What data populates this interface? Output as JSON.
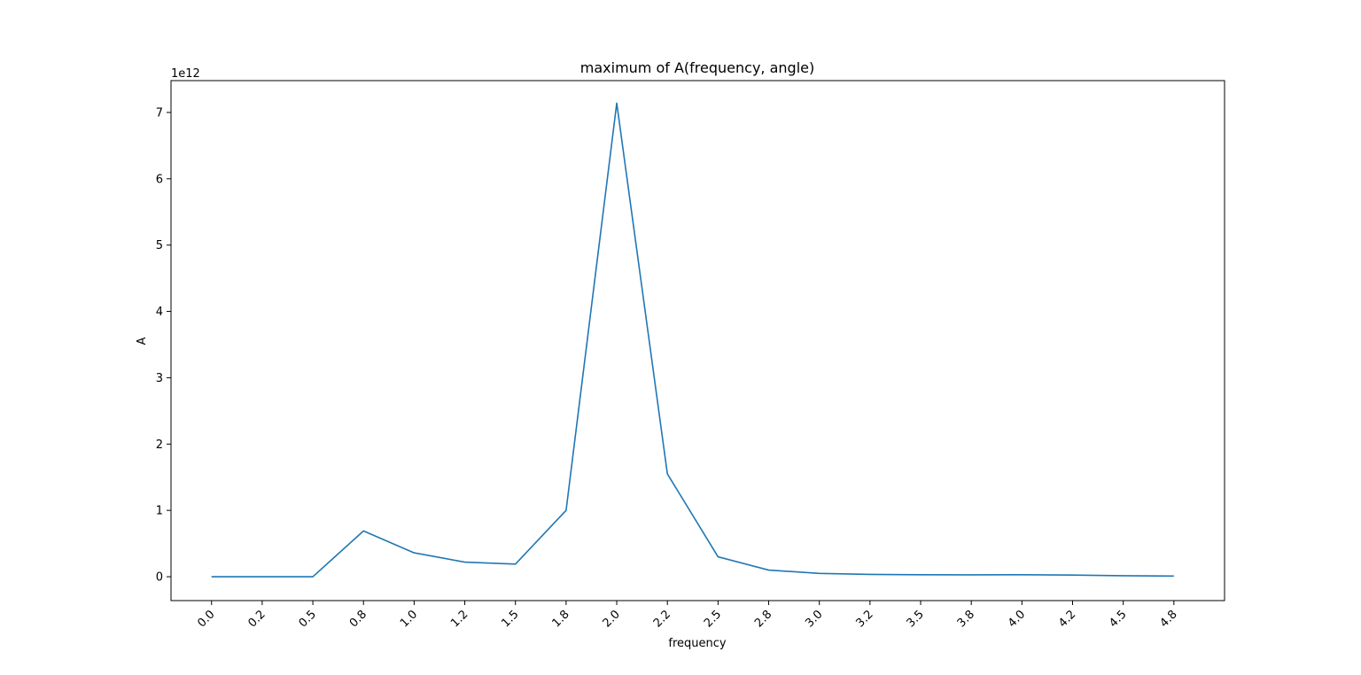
{
  "chart_data": {
    "type": "line",
    "title": "maximum of A(frequency, angle)",
    "xlabel": "frequency",
    "ylabel": "A",
    "y_offset_label": "1e12",
    "xlim": [
      -0.2,
      5.0
    ],
    "ylim": [
      -0.36,
      7.48
    ],
    "x_ticks": [
      0.0,
      0.25,
      0.5,
      0.75,
      1.0,
      1.25,
      1.5,
      1.75,
      2.0,
      2.25,
      2.5,
      2.75,
      3.0,
      3.25,
      3.5,
      3.75,
      4.0,
      4.25,
      4.5,
      4.75
    ],
    "x_tick_labels": [
      "0.0",
      "0.2",
      "0.5",
      "0.8",
      "1.0",
      "1.2",
      "1.5",
      "1.8",
      "2.0",
      "2.2",
      "2.5",
      "2.8",
      "3.0",
      "3.2",
      "3.5",
      "3.8",
      "4.0",
      "4.2",
      "4.5",
      "4.8"
    ],
    "y_ticks": [
      0,
      1,
      2,
      3,
      4,
      5,
      6,
      7
    ],
    "y_tick_labels": [
      "0",
      "1",
      "2",
      "3",
      "4",
      "5",
      "6",
      "7"
    ],
    "grid": false,
    "legend": "none",
    "series": [
      {
        "color": "#1f77b4",
        "x": [
          0.0,
          0.25,
          0.5,
          0.75,
          1.0,
          1.25,
          1.5,
          1.75,
          2.0,
          2.25,
          2.5,
          2.75,
          3.0,
          3.25,
          3.5,
          3.75,
          4.0,
          4.25,
          4.5,
          4.75
        ],
        "y": [
          0.0,
          0.0,
          0.0,
          0.69,
          0.36,
          0.22,
          0.19,
          1.0,
          7.14,
          1.55,
          0.3,
          0.1,
          0.05,
          0.035,
          0.03,
          0.028,
          0.03,
          0.025,
          0.015,
          0.01
        ]
      }
    ]
  }
}
